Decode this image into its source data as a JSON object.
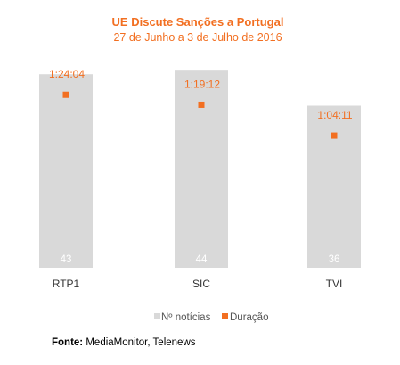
{
  "chart_data": {
    "type": "bar",
    "title": "UE Discute Sanções a Portugal",
    "subtitle": "27 de Junho a 3 de Julho de 2016",
    "categories": [
      "RTP1",
      "SIC",
      "TVI"
    ],
    "series": [
      {
        "name": "Nº notícias",
        "type": "bar",
        "color": "#d9d9d9",
        "values": [
          43,
          44,
          36
        ]
      },
      {
        "name": "Duração",
        "type": "marker",
        "color": "#f26f21",
        "values": [
          "1:24:04",
          "1:19:12",
          "1:04:11"
        ],
        "seconds": [
          5044,
          4752,
          3851
        ]
      }
    ],
    "ylim": [
      0,
      48
    ],
    "duration_ylim_seconds": [
      0,
      6300
    ],
    "legend_position": "bottom",
    "grid": false
  },
  "source": {
    "label": "Fonte:",
    "text": "MediaMonitor, Telenews"
  }
}
